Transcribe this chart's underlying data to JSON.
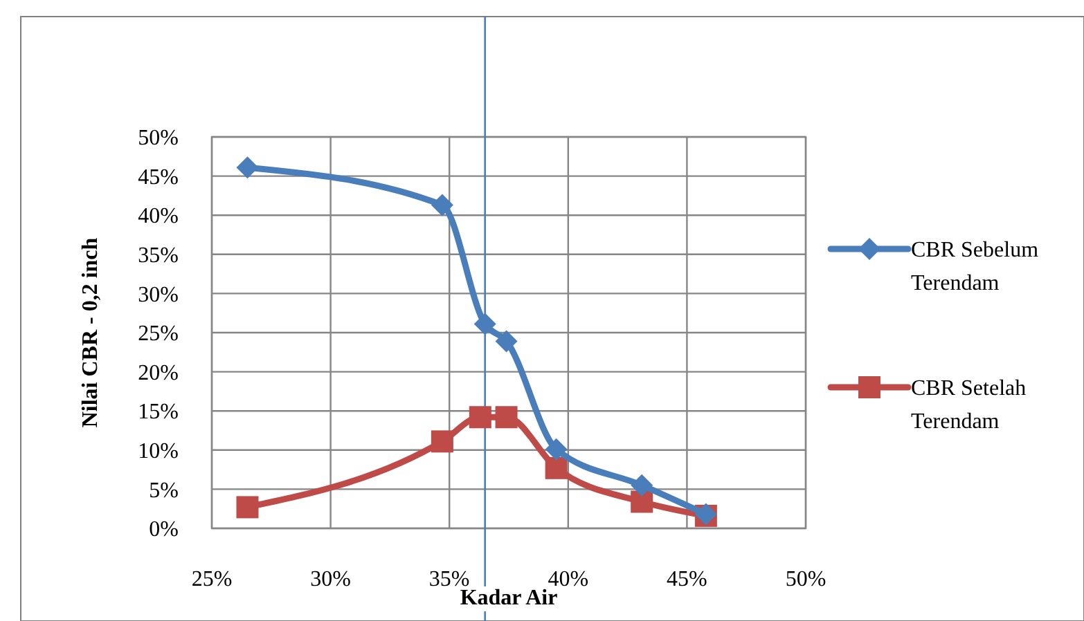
{
  "chart_data": {
    "type": "line",
    "xlabel": "Kadar Air",
    "ylabel": "Nilai CBR - 0,2 inch",
    "xlim": [
      25,
      50
    ],
    "xticks": [
      {
        "value": 25,
        "label": "25%"
      },
      {
        "value": 30,
        "label": "30%"
      },
      {
        "value": 35,
        "label": "35%"
      },
      {
        "value": 40,
        "label": "40%"
      },
      {
        "value": 45,
        "label": "45%"
      },
      {
        "value": 50,
        "label": "50%"
      }
    ],
    "ylim": [
      0,
      50
    ],
    "yticks": [
      {
        "value": 0,
        "label": "0%"
      },
      {
        "value": 5,
        "label": "5%"
      },
      {
        "value": 10,
        "label": "10%"
      },
      {
        "value": 15,
        "label": "15%"
      },
      {
        "value": 20,
        "label": "20%"
      },
      {
        "value": 25,
        "label": "25%"
      },
      {
        "value": 30,
        "label": "30%"
      },
      {
        "value": 35,
        "label": "35%"
      },
      {
        "value": 40,
        "label": "40%"
      },
      {
        "value": 45,
        "label": "45%"
      },
      {
        "value": 50,
        "label": "50%"
      }
    ],
    "grid": true,
    "legend": "right",
    "series": [
      {
        "name": "CBR Sebelum Terendam",
        "color": "#4a7ebb",
        "marker": "diamond",
        "x": [
          26.5,
          34.7,
          36.5,
          37.4,
          39.5,
          43.1,
          45.8
        ],
        "values": [
          46.1,
          41.3,
          26.1,
          23.9,
          10.1,
          5.5,
          1.8
        ]
      },
      {
        "name": "CBR Setelah Terendam",
        "color": "#be4b48",
        "marker": "square",
        "x": [
          26.5,
          34.7,
          36.3,
          37.4,
          39.5,
          43.1,
          45.8
        ],
        "values": [
          2.7,
          11.1,
          14.2,
          14.2,
          7.7,
          3.4,
          1.6
        ]
      }
    ],
    "ref_lines": [
      {
        "axis": "x",
        "value": 36.5,
        "color": "#4a7ebb"
      }
    ]
  }
}
